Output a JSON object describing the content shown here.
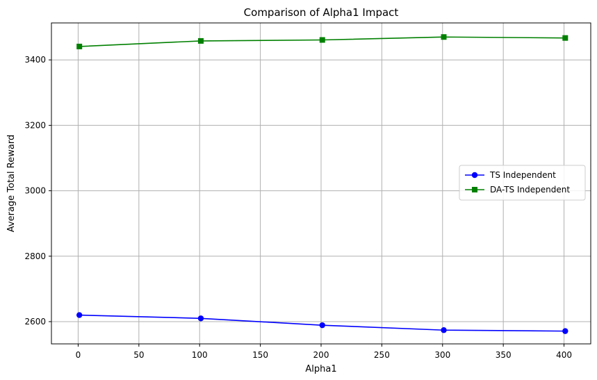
{
  "chart_data": {
    "type": "line",
    "title": "Comparison of Alpha1 Impact",
    "xlabel": "Alpha1",
    "ylabel": "Average Total Reward",
    "xlim": [
      -22,
      422
    ],
    "ylim": [
      2532,
      3513
    ],
    "x_ticks": [
      0,
      50,
      100,
      150,
      200,
      250,
      300,
      350,
      400
    ],
    "y_ticks": [
      2600,
      2800,
      3000,
      3200,
      3400
    ],
    "grid": true,
    "legend_position": "center-right",
    "series": [
      {
        "name": "TS Independent",
        "color": "#0000ff",
        "marker": "circle",
        "x": [
          1,
          101,
          201,
          301,
          401
        ],
        "y": [
          2620,
          2610,
          2589,
          2574,
          2571
        ]
      },
      {
        "name": "DA-TS Independent",
        "color": "#008000",
        "marker": "square",
        "x": [
          1,
          101,
          201,
          301,
          401
        ],
        "y": [
          3441,
          3458,
          3461,
          3470,
          3467
        ]
      }
    ]
  }
}
